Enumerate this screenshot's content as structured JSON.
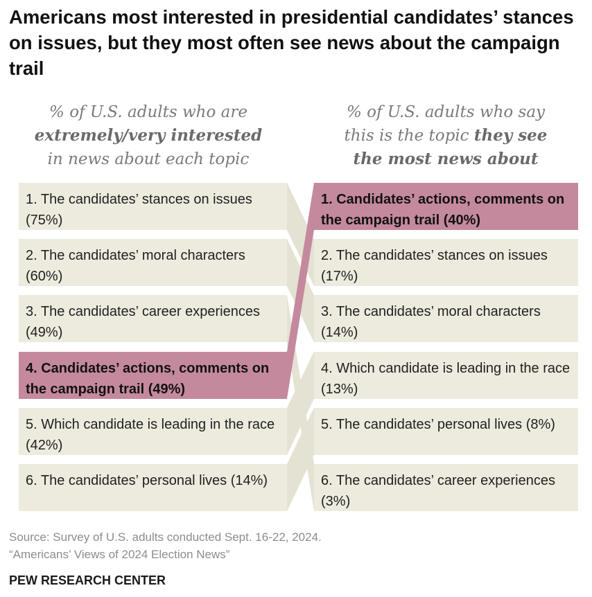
{
  "title": "Americans most interested in presidential candidates’ stances on issues, but they most often see news about the campaign trail",
  "left_subhead": {
    "line1": "% of U.S. adults who are",
    "bold": "extremely/very interested",
    "line3": "in news about each topic"
  },
  "right_subhead": {
    "line1": "% of U.S. adults who say",
    "line2_plain": "this is the topic",
    "line2_bold": "they see",
    "line3_bold": "the most news about"
  },
  "chart_data": {
    "type": "table",
    "left_column": [
      {
        "rank": 1,
        "label": "1. The candidates’ stances on issues (75%)",
        "topic": "The candidates’ stances on issues",
        "value": 75,
        "highlight": false
      },
      {
        "rank": 2,
        "label": "2. The candidates’ moral characters (60%)",
        "topic": "The candidates’ moral characters",
        "value": 60,
        "highlight": false
      },
      {
        "rank": 3,
        "label": "3. The candidates’ career experiences (49%)",
        "topic": "The candidates’ career experiences",
        "value": 49,
        "highlight": false
      },
      {
        "rank": 4,
        "label": "4. Candidates’ actions, comments on the campaign trail (49%)",
        "topic": "Candidates’ actions, comments on the campaign trail",
        "value": 49,
        "highlight": true
      },
      {
        "rank": 5,
        "label": "5. Which candidate is leading in the race (42%)",
        "topic": "Which candidate is leading in the race",
        "value": 42,
        "highlight": false
      },
      {
        "rank": 6,
        "label": "6. The candidates’ personal lives (14%)",
        "topic": "The candidates’ personal lives",
        "value": 14,
        "highlight": false
      }
    ],
    "right_column": [
      {
        "rank": 1,
        "label": "1. Candidates’ actions, comments on the campaign trail (40%)",
        "topic": "Candidates’ actions, comments on the campaign trail",
        "value": 40,
        "highlight": true
      },
      {
        "rank": 2,
        "label": "2. The candidates’ stances on issues (17%)",
        "topic": "The candidates’ stances on issues",
        "value": 17,
        "highlight": false
      },
      {
        "rank": 3,
        "label": "3. The candidates’ moral characters (14%)",
        "topic": "The candidates’ moral characters",
        "value": 14,
        "highlight": false
      },
      {
        "rank": 4,
        "label": "4. Which candidate is leading in the race (13%)",
        "topic": "Which candidate is leading in the race",
        "value": 13,
        "highlight": false
      },
      {
        "rank": 5,
        "label": "5. The candidates’ personal lives (8%)",
        "topic": "The candidates’ personal lives",
        "value": 8,
        "highlight": false
      },
      {
        "rank": 6,
        "label": "6. The candidates’ career experiences (3%)",
        "topic": "The candidates’ career experiences",
        "value": 3,
        "highlight": false
      }
    ],
    "links": [
      [
        0,
        1
      ],
      [
        1,
        2
      ],
      [
        2,
        5
      ],
      [
        3,
        0
      ],
      [
        4,
        3
      ],
      [
        5,
        4
      ]
    ]
  },
  "colors": {
    "box": "#ecebde",
    "connector": "#e3e2d3",
    "highlight": "#c5899d",
    "highlight_connector": "#c5899d"
  },
  "footer": {
    "source": "Source: Survey of U.S. adults conducted Sept. 16-22, 2024.",
    "report": "“Americans’ Views of 2024 Election News”",
    "brand": "PEW RESEARCH CENTER"
  }
}
